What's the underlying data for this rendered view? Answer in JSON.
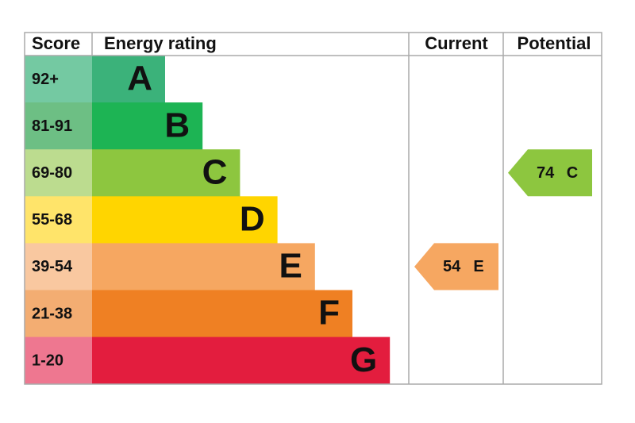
{
  "header": {
    "score": "Score",
    "rating": "Energy rating",
    "current": "Current",
    "potential": "Potential"
  },
  "rows": [
    {
      "score": "92+",
      "letter": "A",
      "bar_color": "#3bb27a",
      "score_color": "#74c9a2"
    },
    {
      "score": "81-91",
      "letter": "B",
      "bar_color": "#1db454",
      "score_color": "#6dbf84"
    },
    {
      "score": "69-80",
      "letter": "C",
      "bar_color": "#8dc63f",
      "score_color": "#bcdc8f"
    },
    {
      "score": "55-68",
      "letter": "D",
      "bar_color": "#ffd500",
      "score_color": "#ffe46a"
    },
    {
      "score": "39-54",
      "letter": "E",
      "bar_color": "#f6a761",
      "score_color": "#f9c8a0"
    },
    {
      "score": "21-38",
      "letter": "F",
      "bar_color": "#ef8023",
      "score_color": "#f3ad72"
    },
    {
      "score": "1-20",
      "letter": "G",
      "bar_color": "#e31d3e",
      "score_color": "#ee7790"
    }
  ],
  "current": {
    "value": 54,
    "letter": "E"
  },
  "potential": {
    "value": 74,
    "letter": "C"
  }
}
